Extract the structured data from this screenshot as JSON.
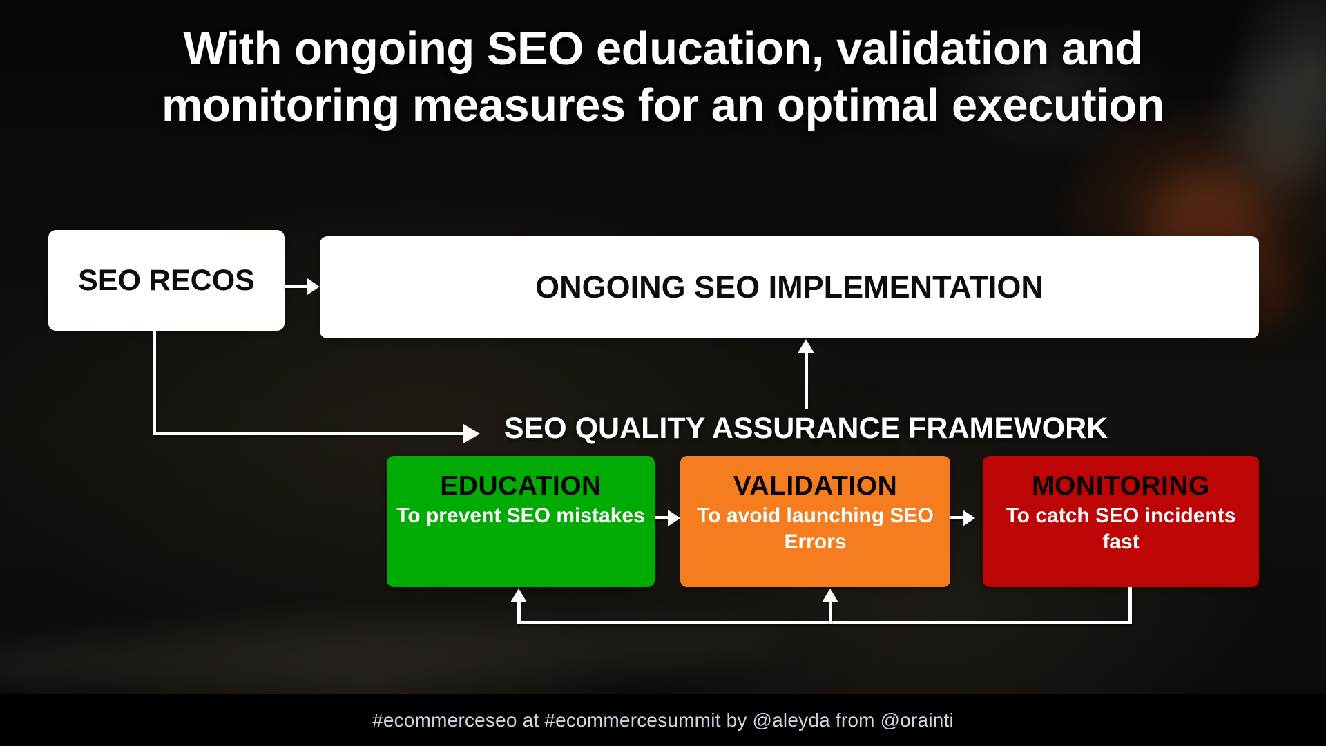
{
  "slide": {
    "title_line1": "With ongoing SEO education, validation and",
    "title_line2": "monitoring measures for an optimal execution",
    "footer_text": "#ecommerceseo at #ecommercesummit by @aleyda from @orainti"
  },
  "diagram": {
    "seo_recos_label": "SEO RECOS",
    "implementation_label": "ONGOING SEO IMPLEMENTATION",
    "framework_label": "SEO QUALITY ASSURANCE FRAMEWORK",
    "stages": [
      {
        "title": "EDUCATION",
        "description": "To prevent SEO mistakes",
        "color": "#00AB04"
      },
      {
        "title": "VALIDATION",
        "description": "To avoid launching SEO Errors",
        "color": "#F57D1F"
      },
      {
        "title": "MONITORING",
        "description": "To catch SEO incidents fast",
        "color": "#BE0505"
      }
    ],
    "box_background": "#ffffff",
    "arrow_color": "#ffffff"
  }
}
